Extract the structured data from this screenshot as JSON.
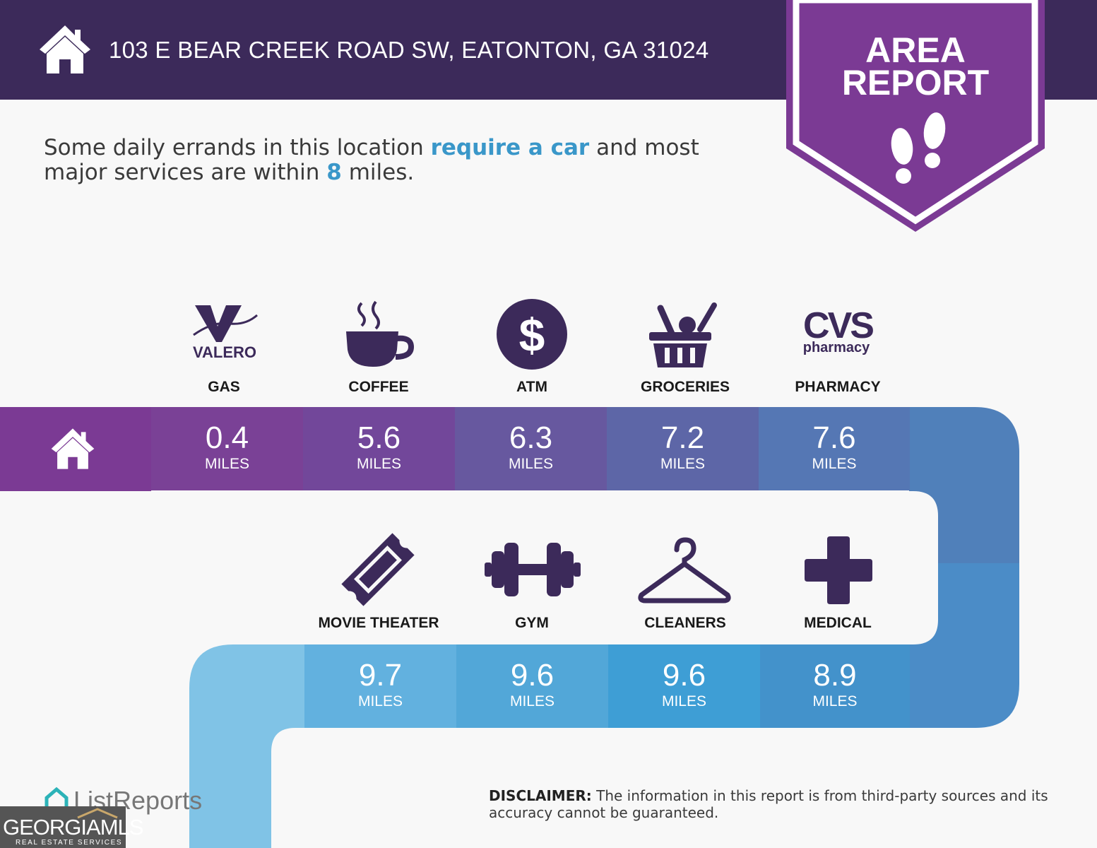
{
  "header": {
    "address": "103 E BEAR CREEK ROAD SW, EATONTON, GA 31024",
    "badge_line1": "AREA",
    "badge_line2": "REPORT"
  },
  "intro": {
    "part1": "Some daily errands in this location ",
    "highlight1": "require a car",
    "part2": " and most major services are within ",
    "highlight2": "8",
    "part3": " miles."
  },
  "row1": [
    {
      "label": "GAS",
      "value": "0.4",
      "unit": "MILES",
      "icon": "valero-logo",
      "logo_text": "VALERO",
      "color": "#7a4196"
    },
    {
      "label": "COFFEE",
      "value": "5.6",
      "unit": "MILES",
      "icon": "coffee-cup-icon",
      "color": "#72479a"
    },
    {
      "label": "ATM",
      "value": "6.3",
      "unit": "MILES",
      "icon": "dollar-icon",
      "color": "#67589f"
    },
    {
      "label": "GROCERIES",
      "value": "7.2",
      "unit": "MILES",
      "icon": "grocery-basket-icon",
      "color": "#5d66a7"
    },
    {
      "label": "PHARMACY",
      "value": "7.6",
      "unit": "MILES",
      "icon": "cvs-logo",
      "logo_text": "CVS",
      "logo_sub": "pharmacy",
      "color": "#5577b4"
    }
  ],
  "row2": [
    {
      "label": "MOVIE THEATER",
      "value": "9.7",
      "unit": "MILES",
      "icon": "ticket-icon",
      "color": "#62b1df"
    },
    {
      "label": "GYM",
      "value": "9.6",
      "unit": "MILES",
      "icon": "dumbbell-icon",
      "color": "#52a7d8"
    },
    {
      "label": "CLEANERS",
      "value": "9.6",
      "unit": "MILES",
      "icon": "hanger-icon",
      "color": "#3e9ed5"
    },
    {
      "label": "MEDICAL",
      "value": "8.9",
      "unit": "MILES",
      "icon": "medical-cross-icon",
      "color": "#4392cb"
    }
  ],
  "colors": {
    "header_bg": "#3c2a5a",
    "badge": "#7b3a94",
    "home_cell": "#7b3a94",
    "icon": "#3c2a5a",
    "highlight": "#3a97c9"
  },
  "disclaimer": {
    "label": "DISCLAIMER:",
    "text": " The information in this report is from third-party sources and its accuracy cannot be guaranteed."
  },
  "footer": {
    "brand": "ListReports",
    "gmls_main": "GEORGIAMLS",
    "gmls_sub": "REAL ESTATE SERVICES"
  }
}
